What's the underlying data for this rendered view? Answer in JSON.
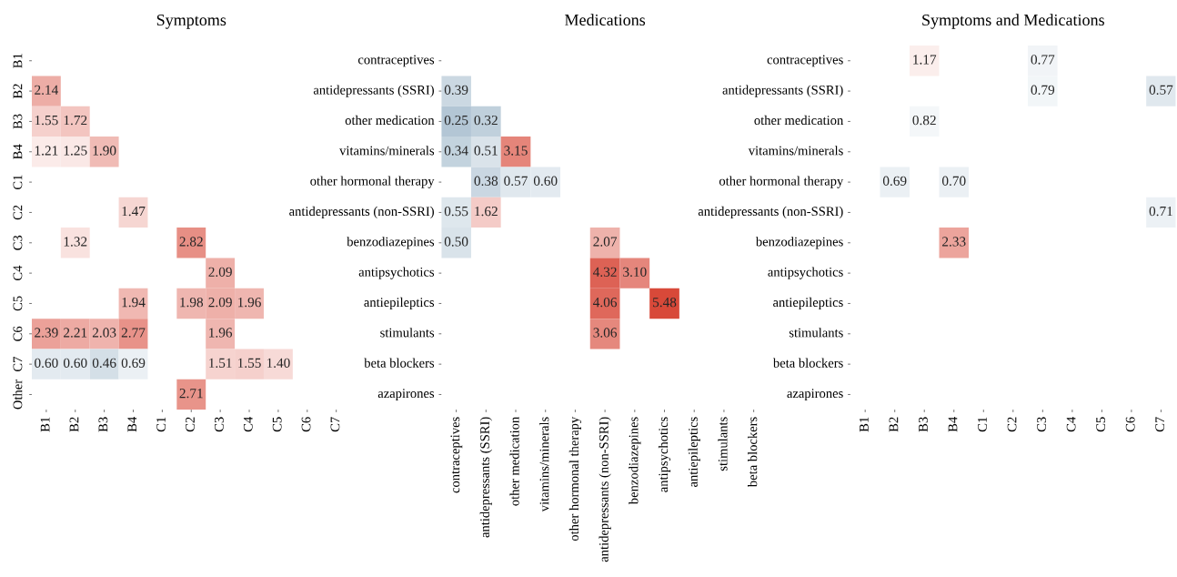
{
  "chart_data": [
    {
      "type": "heatmap",
      "title": "Symptoms",
      "data_labels": true,
      "categories": [
        "B1",
        "B2",
        "B3",
        "B4",
        "C1",
        "C2",
        "C3",
        "C4",
        "C5",
        "C6",
        "C7"
      ],
      "y_categories": [
        "B1",
        "B2",
        "B3",
        "B4",
        "C1",
        "C2",
        "C3",
        "C4",
        "C5",
        "C6",
        "C7",
        "Other"
      ],
      "cells": [
        [
          null,
          null,
          null,
          null,
          null,
          null,
          null,
          null,
          null,
          null,
          null
        ],
        [
          2.14,
          null,
          null,
          null,
          null,
          null,
          null,
          null,
          null,
          null,
          null
        ],
        [
          1.55,
          1.72,
          null,
          null,
          null,
          null,
          null,
          null,
          null,
          null,
          null
        ],
        [
          1.21,
          1.25,
          1.9,
          null,
          null,
          null,
          null,
          null,
          null,
          null,
          null
        ],
        [
          null,
          null,
          null,
          null,
          null,
          null,
          null,
          null,
          null,
          null,
          null
        ],
        [
          null,
          null,
          null,
          1.47,
          null,
          null,
          null,
          null,
          null,
          null,
          null
        ],
        [
          null,
          1.32,
          null,
          null,
          null,
          2.82,
          null,
          null,
          null,
          null,
          null
        ],
        [
          null,
          null,
          null,
          null,
          null,
          null,
          2.09,
          null,
          null,
          null,
          null
        ],
        [
          null,
          null,
          null,
          1.94,
          null,
          1.98,
          2.09,
          1.96,
          null,
          null,
          null
        ],
        [
          2.39,
          2.21,
          2.03,
          2.77,
          null,
          null,
          1.96,
          null,
          null,
          null,
          null
        ],
        [
          0.6,
          0.6,
          0.46,
          0.69,
          null,
          null,
          1.51,
          1.55,
          1.4,
          null,
          null
        ],
        [
          null,
          null,
          null,
          null,
          null,
          2.71,
          null,
          null,
          null,
          null,
          null
        ]
      ],
      "cell_labels": [
        [
          null,
          null,
          null,
          null,
          null,
          null,
          null,
          null,
          null,
          null,
          null
        ],
        [
          "2.14",
          null,
          null,
          null,
          null,
          null,
          null,
          null,
          null,
          null,
          null
        ],
        [
          "1.55",
          "1.72",
          null,
          null,
          null,
          null,
          null,
          null,
          null,
          null,
          null
        ],
        [
          "1.21",
          "1.25",
          "1.90",
          null,
          null,
          null,
          null,
          null,
          null,
          null,
          null
        ],
        [
          null,
          null,
          null,
          null,
          null,
          null,
          null,
          null,
          null,
          null,
          null
        ],
        [
          null,
          null,
          null,
          "1.47",
          null,
          null,
          null,
          null,
          null,
          null,
          null
        ],
        [
          null,
          "1.32",
          null,
          null,
          null,
          "2.82",
          null,
          null,
          null,
          null,
          null
        ],
        [
          null,
          null,
          null,
          null,
          null,
          null,
          "2.09",
          null,
          null,
          null,
          null
        ],
        [
          null,
          null,
          null,
          "1.94",
          null,
          "1.98",
          "2.09",
          "1.96",
          null,
          null,
          null
        ],
        [
          "2.39",
          "2.21",
          "2.03",
          "2.77",
          null,
          null,
          "1.96",
          null,
          null,
          null,
          null
        ],
        [
          "0.60",
          "0.60",
          "0.46",
          "0.69",
          null,
          null,
          "1.51",
          "1.55",
          "1.40",
          null,
          null
        ],
        [
          null,
          null,
          null,
          null,
          null,
          "2.71",
          null,
          null,
          null,
          null,
          null
        ]
      ]
    },
    {
      "type": "heatmap",
      "title": "Medications",
      "data_labels": true,
      "categories": [
        "contraceptives",
        "antidepressants (SSRI)",
        "other medication",
        "vitamins/minerals",
        "other hormonal therapy",
        "antidepressants (non-SSRI)",
        "benzodiazepines",
        "antipsychotics",
        "antiepileptics",
        "stimulants",
        "beta blockers"
      ],
      "y_categories": [
        "contraceptives",
        "antidepressants (SSRI)",
        "other medication",
        "vitamins/minerals",
        "other hormonal therapy",
        "antidepressants (non-SSRI)",
        "benzodiazepines",
        "antipsychotics",
        "antiepileptics",
        "stimulants",
        "beta blockers",
        "azapirones"
      ],
      "cells": [
        [
          null,
          null,
          null,
          null,
          null,
          null,
          null,
          null,
          null,
          null,
          null
        ],
        [
          0.39,
          null,
          null,
          null,
          null,
          null,
          null,
          null,
          null,
          null,
          null
        ],
        [
          0.25,
          0.32,
          null,
          null,
          null,
          null,
          null,
          null,
          null,
          null,
          null
        ],
        [
          0.34,
          0.51,
          3.15,
          null,
          null,
          null,
          null,
          null,
          null,
          null,
          null
        ],
        [
          null,
          0.38,
          0.57,
          0.6,
          null,
          null,
          null,
          null,
          null,
          null,
          null
        ],
        [
          0.55,
          1.62,
          null,
          null,
          null,
          null,
          null,
          null,
          null,
          null,
          null
        ],
        [
          0.5,
          null,
          null,
          null,
          null,
          2.07,
          null,
          null,
          null,
          null,
          null
        ],
        [
          null,
          null,
          null,
          null,
          null,
          4.32,
          3.1,
          null,
          null,
          null,
          null
        ],
        [
          null,
          null,
          null,
          null,
          null,
          4.06,
          null,
          5.48,
          null,
          null,
          null
        ],
        [
          null,
          null,
          null,
          null,
          null,
          3.06,
          null,
          null,
          null,
          null,
          null
        ],
        [
          null,
          null,
          null,
          null,
          null,
          null,
          null,
          null,
          null,
          null,
          null
        ],
        [
          null,
          null,
          null,
          null,
          null,
          null,
          null,
          null,
          null,
          null,
          null
        ]
      ],
      "cell_labels": [
        [
          null,
          null,
          null,
          null,
          null,
          null,
          null,
          null,
          null,
          null,
          null
        ],
        [
          "0.39",
          null,
          null,
          null,
          null,
          null,
          null,
          null,
          null,
          null,
          null
        ],
        [
          "0.25",
          "0.32",
          null,
          null,
          null,
          null,
          null,
          null,
          null,
          null,
          null
        ],
        [
          "0.34",
          "0.51",
          "3.15",
          null,
          null,
          null,
          null,
          null,
          null,
          null,
          null
        ],
        [
          null,
          "0.38",
          "0.57",
          "0.60",
          null,
          null,
          null,
          null,
          null,
          null,
          null
        ],
        [
          "0.55",
          "1.62",
          null,
          null,
          null,
          null,
          null,
          null,
          null,
          null,
          null
        ],
        [
          "0.50",
          null,
          null,
          null,
          null,
          "2.07",
          null,
          null,
          null,
          null,
          null
        ],
        [
          null,
          null,
          null,
          null,
          null,
          "4.32",
          "3.10",
          null,
          null,
          null,
          null
        ],
        [
          null,
          null,
          null,
          null,
          null,
          "4.06",
          null,
          "5.48",
          null,
          null,
          null
        ],
        [
          null,
          null,
          null,
          null,
          null,
          "3.06",
          null,
          null,
          null,
          null,
          null
        ],
        [
          null,
          null,
          null,
          null,
          null,
          null,
          null,
          null,
          null,
          null,
          null
        ],
        [
          null,
          null,
          null,
          null,
          null,
          null,
          null,
          null,
          null,
          null,
          null
        ]
      ]
    },
    {
      "type": "heatmap",
      "title": "Symptoms and Medications",
      "data_labels": true,
      "categories": [
        "B1",
        "B2",
        "B3",
        "B4",
        "C1",
        "C2",
        "C3",
        "C4",
        "C5",
        "C6",
        "C7"
      ],
      "y_categories": [
        "contraceptives",
        "antidepressants (SSRI)",
        "other medication",
        "vitamins/minerals",
        "other hormonal therapy",
        "antidepressants (non-SSRI)",
        "benzodiazepines",
        "antipsychotics",
        "antiepileptics",
        "stimulants",
        "beta blockers",
        "azapirones"
      ],
      "cells": [
        [
          null,
          null,
          1.17,
          null,
          null,
          null,
          0.77,
          null,
          null,
          null,
          null
        ],
        [
          null,
          null,
          null,
          null,
          null,
          null,
          0.79,
          null,
          null,
          null,
          0.57
        ],
        [
          null,
          null,
          0.82,
          null,
          null,
          null,
          null,
          null,
          null,
          null,
          null
        ],
        [
          null,
          null,
          null,
          null,
          null,
          null,
          null,
          null,
          null,
          null,
          null
        ],
        [
          null,
          0.69,
          null,
          0.7,
          null,
          null,
          null,
          null,
          null,
          null,
          null
        ],
        [
          null,
          null,
          null,
          null,
          null,
          null,
          null,
          null,
          null,
          null,
          0.71
        ],
        [
          null,
          null,
          null,
          2.33,
          null,
          null,
          null,
          null,
          null,
          null,
          null
        ],
        [
          null,
          null,
          null,
          null,
          null,
          null,
          null,
          null,
          null,
          null,
          null
        ],
        [
          null,
          null,
          null,
          null,
          null,
          null,
          null,
          null,
          null,
          null,
          null
        ],
        [
          null,
          null,
          null,
          null,
          null,
          null,
          null,
          null,
          null,
          null,
          null
        ],
        [
          null,
          null,
          null,
          null,
          null,
          null,
          null,
          null,
          null,
          null,
          null
        ],
        [
          null,
          null,
          null,
          null,
          null,
          null,
          null,
          null,
          null,
          null,
          null
        ]
      ],
      "cell_labels": [
        [
          null,
          null,
          "1.17",
          null,
          null,
          null,
          "0.77",
          null,
          null,
          null,
          null
        ],
        [
          null,
          null,
          null,
          null,
          null,
          null,
          "0.79",
          null,
          null,
          null,
          "0.57"
        ],
        [
          null,
          null,
          "0.82",
          null,
          null,
          null,
          null,
          null,
          null,
          null,
          null
        ],
        [
          null,
          null,
          null,
          null,
          null,
          null,
          null,
          null,
          null,
          null,
          null
        ],
        [
          null,
          "0.69",
          null,
          "0.70",
          null,
          null,
          null,
          null,
          null,
          null,
          null
        ],
        [
          null,
          null,
          null,
          null,
          null,
          null,
          null,
          null,
          null,
          null,
          "0.71"
        ],
        [
          null,
          null,
          null,
          "2.33",
          null,
          null,
          null,
          null,
          null,
          null,
          null
        ],
        [
          null,
          null,
          null,
          null,
          null,
          null,
          null,
          null,
          null,
          null,
          null
        ],
        [
          null,
          null,
          null,
          null,
          null,
          null,
          null,
          null,
          null,
          null,
          null
        ],
        [
          null,
          null,
          null,
          null,
          null,
          null,
          null,
          null,
          null,
          null,
          null
        ],
        [
          null,
          null,
          null,
          null,
          null,
          null,
          null,
          null,
          null,
          null,
          null
        ],
        [
          null,
          null,
          null,
          null,
          null,
          null,
          null,
          null,
          null,
          null,
          null
        ]
      ]
    }
  ]
}
